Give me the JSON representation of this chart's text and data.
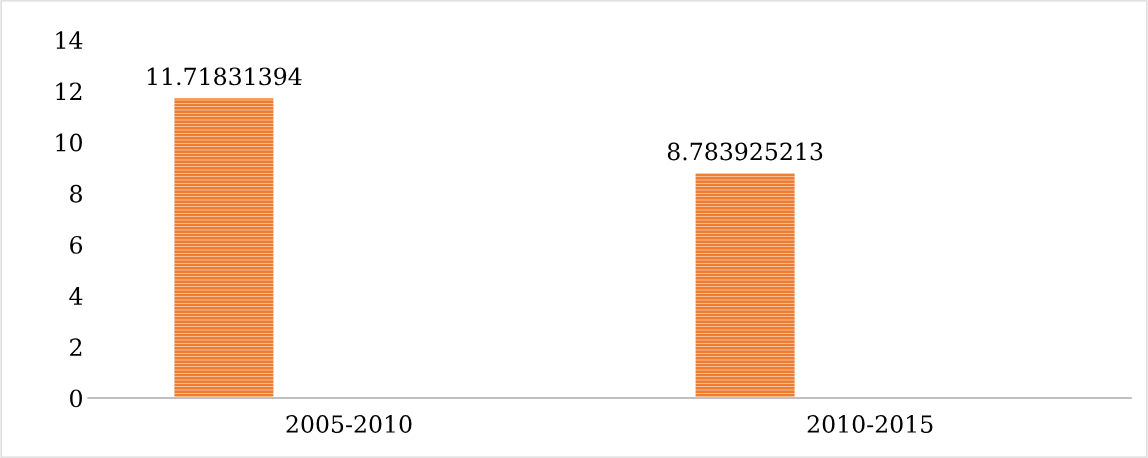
{
  "chart_data": {
    "type": "bar",
    "categories": [
      "2005-2010",
      "2010-2015"
    ],
    "values": [
      11.71831394,
      8.783925213
    ],
    "color": "#ed7d31",
    "ylim": [
      0,
      14
    ],
    "yticks": [
      0,
      2,
      4,
      6,
      8,
      10,
      12,
      14
    ],
    "grid": false,
    "legend": false,
    "data_labels": true
  }
}
